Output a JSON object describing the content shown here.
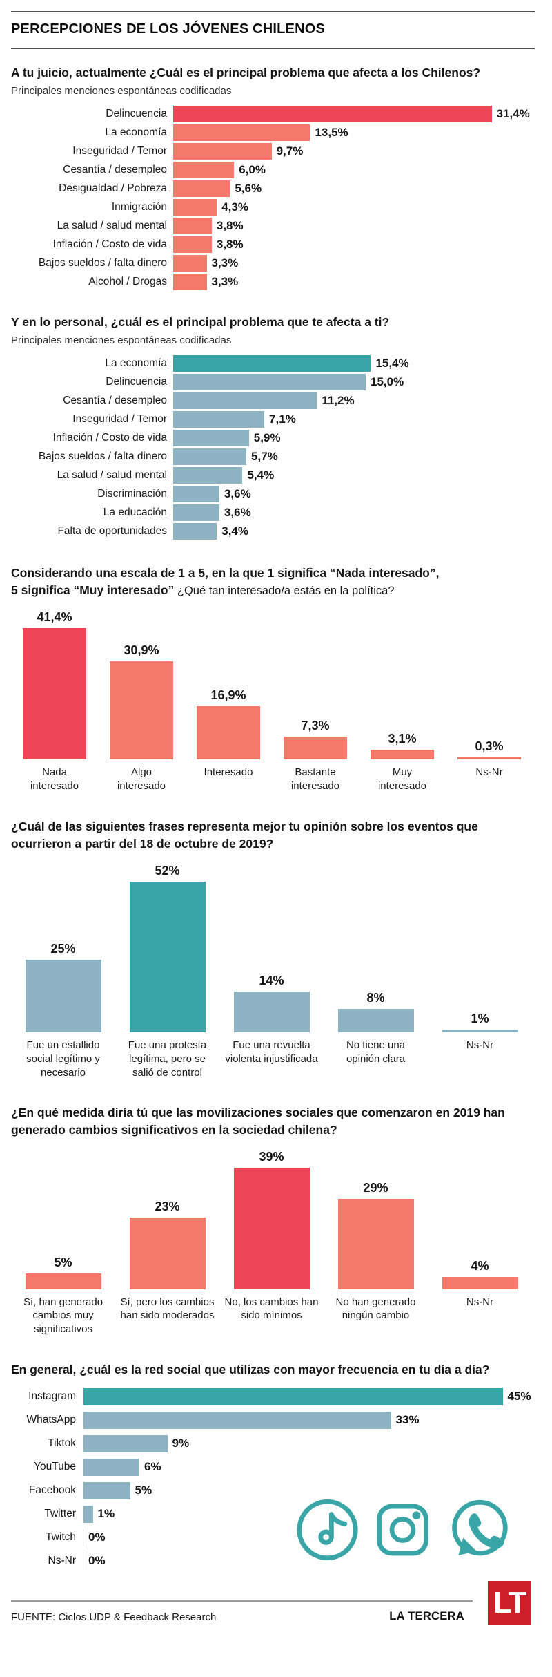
{
  "header": {
    "title": "PERCEPCIONES DE LOS JÓVENES CHILENOS"
  },
  "palette": {
    "crimson": "#ee4656",
    "salmon": "#f5786c",
    "teal": "#38a4a6",
    "bluegray": "#8db3c2",
    "logo_red": "#cd1f27",
    "icon_teal": "#3aa5a6"
  },
  "icons": [
    "tiktok-icon",
    "instagram-icon",
    "whatsapp-icon"
  ],
  "footer": {
    "source": "FUENTE: Ciclos UDP & Feedback Research",
    "brand": "LA TERCERA",
    "logo_text": "LT"
  },
  "chart_data": [
    {
      "type": "bar",
      "orientation": "horizontal",
      "title": "A tu juicio, actualmente ¿Cuál es el principal problema que afecta a los Chilenos?",
      "subtitle": "Principales menciones espontáneas codificadas",
      "categories": [
        "Delincuencia",
        "La economía",
        "Inseguridad / Temor",
        "Cesantía / desempleo",
        "Desigualdad / Pobreza",
        "Inmigración",
        "La salud / salud mental",
        "Inflación / Costo de vida",
        "Bajos sueldos / falta dinero",
        "Alcohol / Drogas"
      ],
      "values": [
        31.4,
        13.5,
        9.7,
        6.0,
        5.6,
        4.3,
        3.8,
        3.8,
        3.3,
        3.3
      ],
      "labels": [
        "31,4%",
        "13,5%",
        "9,7%",
        "6,0%",
        "5,6%",
        "4,3%",
        "3,8%",
        "3,8%",
        "3,3%",
        "3,3%"
      ],
      "bar_colors": [
        "crimson",
        "salmon",
        "salmon",
        "salmon",
        "salmon",
        "salmon",
        "salmon",
        "salmon",
        "salmon",
        "salmon"
      ],
      "xlim": [
        0,
        33
      ]
    },
    {
      "type": "bar",
      "orientation": "horizontal",
      "title": "Y en lo personal, ¿cuál es el principal problema que te afecta a ti?",
      "subtitle": "Principales menciones espontáneas codificadas",
      "categories": [
        "La economía",
        "Delincuencia",
        "Cesantía / desempleo",
        "Inseguridad / Temor",
        "Inflación / Costo de vida",
        "Bajos sueldos / falta dinero",
        "La salud / salud mental",
        "Discriminación",
        "La educación",
        "Falta de oportunidades"
      ],
      "values": [
        15.4,
        15.0,
        11.2,
        7.1,
        5.9,
        5.7,
        5.4,
        3.6,
        3.6,
        3.4
      ],
      "labels": [
        "15,4%",
        "15,0%",
        "11,2%",
        "7,1%",
        "5,9%",
        "5,7%",
        "5,4%",
        "3,6%",
        "3,6%",
        "3,4%"
      ],
      "bar_colors": [
        "teal",
        "bluegray",
        "bluegray",
        "bluegray",
        "bluegray",
        "bluegray",
        "bluegray",
        "bluegray",
        "bluegray",
        "bluegray"
      ],
      "xlim": [
        0,
        16
      ]
    },
    {
      "type": "bar",
      "orientation": "vertical",
      "title_bold1": "Considerando una escala de 1 a 5, en la que 1 significa “Nada interesado”,",
      "title_bold2": "5 significa “Muy interesado”",
      "title_regular": " ¿Qué tan interesado/a estás en la política?",
      "categories": [
        "Nada interesado",
        "Algo interesado",
        "Interesado",
        "Bastante interesado",
        "Muy interesado",
        "Ns-Nr"
      ],
      "values": [
        41.4,
        30.9,
        16.9,
        7.3,
        3.1,
        0.3
      ],
      "labels": [
        "41,4%",
        "30,9%",
        "16,9%",
        "7,3%",
        "3,1%",
        "0,3%"
      ],
      "bar_colors": [
        "crimson",
        "salmon",
        "salmon",
        "salmon",
        "salmon",
        "salmon"
      ],
      "ylim": [
        0,
        45
      ]
    },
    {
      "type": "bar",
      "orientation": "vertical",
      "title": "¿Cuál de las siguientes frases representa mejor tu opinión sobre los eventos que ocurrieron a partir del 18 de octubre de 2019?",
      "categories": [
        "Fue un estallido social legítimo y necesario",
        "Fue una protesta legítima, pero se salió de control",
        "Fue una revuelta violenta injustificada",
        "No tiene una opinión clara",
        "Ns-Nr"
      ],
      "values": [
        25,
        52,
        14,
        8,
        1
      ],
      "labels": [
        "25%",
        "52%",
        "14%",
        "8%",
        "1%"
      ],
      "bar_colors": [
        "bluegray",
        "teal",
        "bluegray",
        "bluegray",
        "bluegray"
      ],
      "ylim": [
        0,
        55
      ]
    },
    {
      "type": "bar",
      "orientation": "vertical",
      "title": "¿En qué medida diría tú que las movilizaciones sociales que comenzaron en 2019 han generado cambios significativos en la sociedad chilena?",
      "categories": [
        "Sí, han generado cambios muy significativos",
        "Sí, pero los cambios han sido moderados",
        "No, los cambios han sido mínimos",
        "No han generado ningún cambio",
        "Ns-Nr"
      ],
      "values": [
        5,
        23,
        39,
        29,
        4
      ],
      "labels": [
        "5%",
        "23%",
        "39%",
        "29%",
        "4%"
      ],
      "bar_colors": [
        "salmon",
        "salmon",
        "crimson",
        "salmon",
        "salmon"
      ],
      "ylim": [
        0,
        42
      ]
    },
    {
      "type": "bar",
      "orientation": "horizontal",
      "title": "En general, ¿cuál es la red social que utilizas con mayor frecuencia en tu día a día?",
      "categories": [
        "Instagram",
        "WhatsApp",
        "Tiktok",
        "YouTube",
        "Facebook",
        "Twitter",
        "Twitch",
        "Ns-Nr"
      ],
      "values": [
        45,
        33,
        9,
        6,
        5,
        1,
        0,
        0
      ],
      "labels": [
        "45%",
        "33%",
        "9%",
        "6%",
        "5%",
        "1%",
        "0%",
        "0%"
      ],
      "bar_colors": [
        "teal",
        "bluegray",
        "bluegray",
        "bluegray",
        "bluegray",
        "bluegray",
        "bluegray",
        "bluegray"
      ],
      "xlim": [
        0,
        46
      ]
    }
  ]
}
